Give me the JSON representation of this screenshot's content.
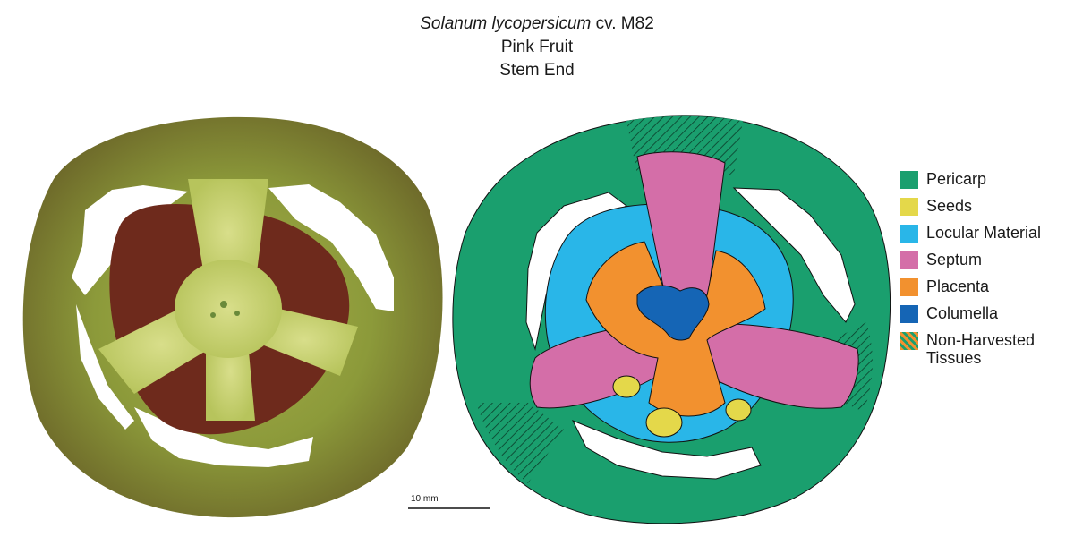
{
  "title": {
    "species": "Solanum lycopersicum",
    "cultivar": "cv. M82",
    "stage": "Pink Fruit",
    "section": "Stem End"
  },
  "legend": [
    {
      "label": "Pericarp",
      "color": "#1a9f6e"
    },
    {
      "label": "Seeds",
      "color": "#e4d84a"
    },
    {
      "label": "Locular Material",
      "color": "#29b6e8"
    },
    {
      "label": "Septum",
      "color": "#d46ea8"
    },
    {
      "label": "Placenta",
      "color": "#f2912f"
    },
    {
      "label": "Columella",
      "color": "#1565b5"
    },
    {
      "label": "Non-Harvested\nTissues",
      "color": "hatched"
    }
  ],
  "scale_bar": {
    "label": "10 mm"
  },
  "colors": {
    "photo_rind": "#8a9a3a",
    "photo_flesh": "#c9d46a",
    "photo_gel": "#6e2a1c",
    "outline": "#111111"
  }
}
